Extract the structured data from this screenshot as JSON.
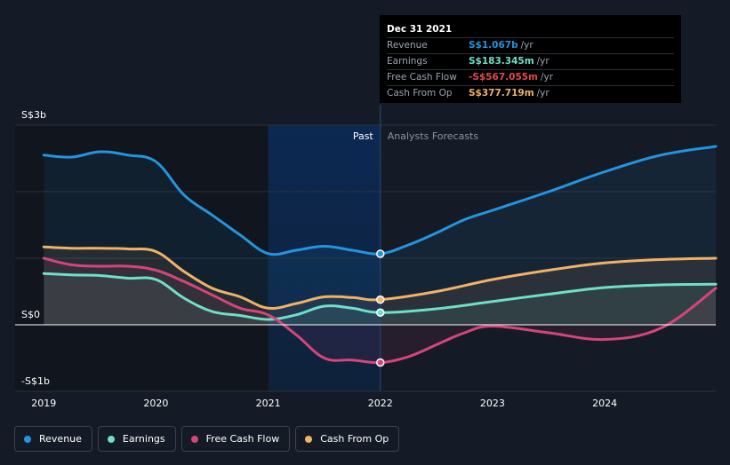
{
  "colors": {
    "revenue": "#2394df",
    "earnings": "#6ee0c8",
    "free_cash_flow": "#d6457a",
    "cash_from_op": "#f0b265",
    "background": "#151b26"
  },
  "tooltip": {
    "date": "Dec 31 2021",
    "rows": [
      {
        "label": "Revenue",
        "value": "S$1.067b",
        "unit": "/yr",
        "color": "#2394df"
      },
      {
        "label": "Earnings",
        "value": "S$183.345m",
        "unit": "/yr",
        "color": "#6ee0c8"
      },
      {
        "label": "Free Cash Flow",
        "value": "-S$567.055m",
        "unit": "/yr",
        "color": "#e2474f"
      },
      {
        "label": "Cash From Op",
        "value": "S$377.719m",
        "unit": "/yr",
        "color": "#f0b265"
      }
    ]
  },
  "legend": [
    {
      "label": "Revenue",
      "color": "#2394df"
    },
    {
      "label": "Earnings",
      "color": "#6ee0c8"
    },
    {
      "label": "Free Cash Flow",
      "color": "#d6457a"
    },
    {
      "label": "Cash From Op",
      "color": "#f0b265"
    }
  ],
  "chart_data": {
    "type": "line",
    "y_unit": "S$ billions",
    "ylim": [
      -1,
      3
    ],
    "xlim": [
      2018.99,
      2024.99
    ],
    "y_tick_labels": [
      {
        "value": 3,
        "label": "S$3b"
      },
      {
        "value": 0,
        "label": "S$0"
      },
      {
        "value": -1,
        "label": "-S$1b"
      }
    ],
    "x_ticks": [
      2019,
      2020,
      2021,
      2022,
      2023,
      2024
    ],
    "x_tick_labels": [
      "2019",
      "2020",
      "2021",
      "2022",
      "2023",
      "2024"
    ],
    "past_label": "Past",
    "forecast_label": "Analysts Forecasts",
    "past_end": 2022.0,
    "highlight_start": 2021.0,
    "grid": true,
    "legend_position": "bottom-left",
    "series": [
      {
        "name": "Revenue",
        "color": "#2394df",
        "x": [
          2019.0,
          2019.25,
          2019.5,
          2019.75,
          2020.0,
          2020.25,
          2020.5,
          2020.75,
          2021.0,
          2021.25,
          2021.5,
          2021.75,
          2022.0,
          2022.25,
          2022.5,
          2022.75,
          2023.0,
          2023.5,
          2024.0,
          2024.5,
          2024.99
        ],
        "y": [
          2.55,
          2.52,
          2.6,
          2.55,
          2.45,
          1.95,
          1.65,
          1.35,
          1.07,
          1.12,
          1.18,
          1.12,
          1.067,
          1.2,
          1.38,
          1.58,
          1.72,
          2.0,
          2.3,
          2.55,
          2.68
        ]
      },
      {
        "name": "Earnings",
        "color": "#6ee0c8",
        "x": [
          2019.0,
          2019.25,
          2019.5,
          2019.75,
          2020.0,
          2020.25,
          2020.5,
          2020.75,
          2021.0,
          2021.25,
          2021.5,
          2021.75,
          2022.0,
          2022.5,
          2023.0,
          2023.5,
          2024.0,
          2024.5,
          2024.99
        ],
        "y": [
          0.77,
          0.75,
          0.74,
          0.7,
          0.68,
          0.4,
          0.2,
          0.14,
          0.08,
          0.15,
          0.28,
          0.25,
          0.183,
          0.24,
          0.35,
          0.46,
          0.56,
          0.6,
          0.61
        ]
      },
      {
        "name": "Free Cash Flow",
        "color": "#d6457a",
        "x": [
          2019.0,
          2019.25,
          2019.5,
          2019.75,
          2020.0,
          2020.25,
          2020.5,
          2020.75,
          2021.0,
          2021.25,
          2021.5,
          2021.75,
          2022.0,
          2022.25,
          2022.5,
          2022.75,
          2023.0,
          2023.5,
          2024.0,
          2024.5,
          2024.99
        ],
        "y": [
          1.0,
          0.9,
          0.88,
          0.88,
          0.82,
          0.65,
          0.45,
          0.25,
          0.15,
          -0.15,
          -0.5,
          -0.53,
          -0.567,
          -0.48,
          -0.3,
          -0.12,
          -0.02,
          -0.12,
          -0.22,
          -0.05,
          0.55
        ]
      },
      {
        "name": "Cash From Op",
        "color": "#f0b265",
        "x": [
          2019.0,
          2019.25,
          2019.5,
          2019.75,
          2020.0,
          2020.25,
          2020.5,
          2020.75,
          2021.0,
          2021.25,
          2021.5,
          2021.75,
          2022.0,
          2022.5,
          2023.0,
          2023.5,
          2024.0,
          2024.5,
          2024.99
        ],
        "y": [
          1.17,
          1.15,
          1.15,
          1.14,
          1.1,
          0.8,
          0.55,
          0.42,
          0.25,
          0.32,
          0.42,
          0.41,
          0.378,
          0.5,
          0.68,
          0.82,
          0.93,
          0.98,
          1.0
        ]
      }
    ],
    "highlighted_points": [
      {
        "series": "Revenue",
        "x": 2022.0,
        "y": 1.067
      },
      {
        "series": "Earnings",
        "x": 2022.0,
        "y": 0.183
      },
      {
        "series": "Free Cash Flow",
        "x": 2022.0,
        "y": -0.567
      },
      {
        "series": "Cash From Op",
        "x": 2022.0,
        "y": 0.378
      }
    ]
  }
}
